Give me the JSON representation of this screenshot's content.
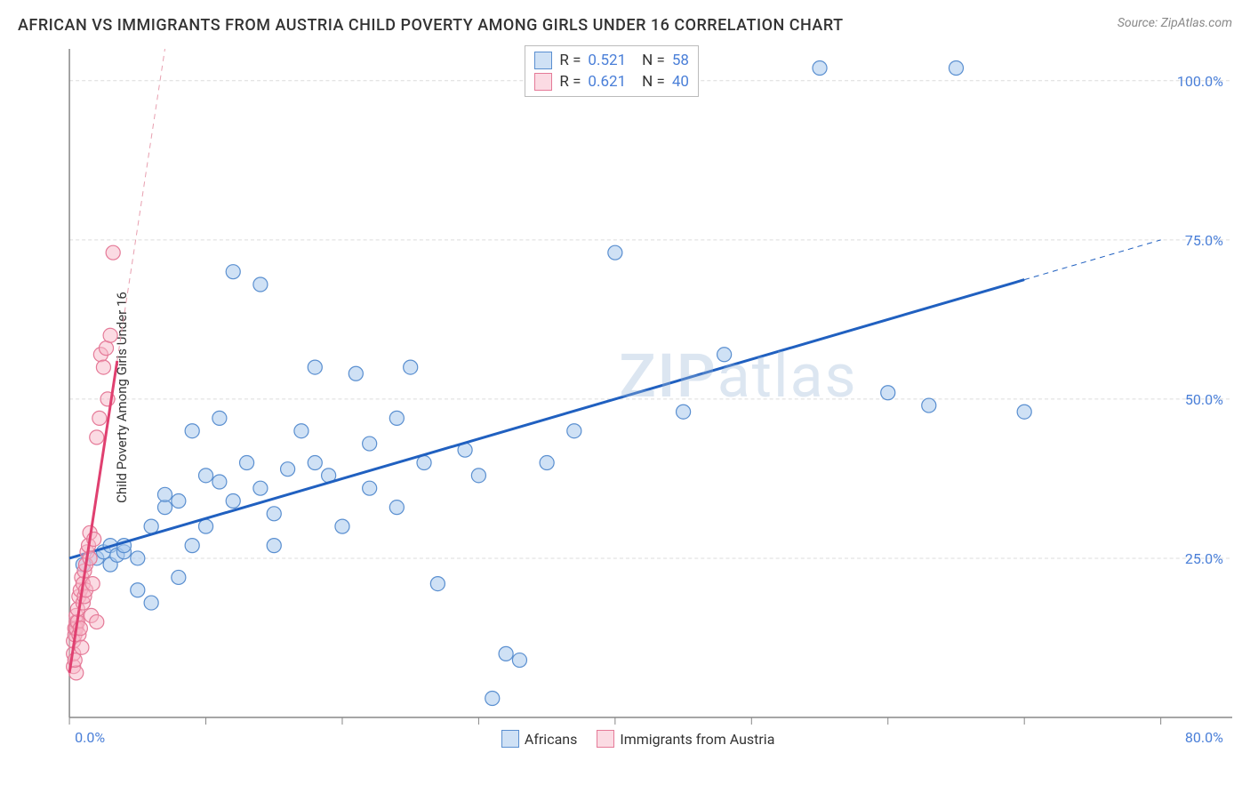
{
  "title": "AFRICAN VS IMMIGRANTS FROM AUSTRIA CHILD POVERTY AMONG GIRLS UNDER 16 CORRELATION CHART",
  "source_label": "Source: ZipAtlas.com",
  "y_axis_label": "Child Poverty Among Girls Under 16",
  "watermark_a": "ZIP",
  "watermark_b": "atlas",
  "chart": {
    "type": "scatter",
    "xlim": [
      0,
      80
    ],
    "ylim": [
      0,
      105
    ],
    "x_ticks": [
      0,
      10,
      20,
      30,
      40,
      50,
      60,
      70,
      80
    ],
    "x_tick_labels": {
      "0": "0.0%",
      "80": "80.0%"
    },
    "y_gridlines": [
      25,
      50,
      75,
      100
    ],
    "y_tick_labels": [
      "25.0%",
      "50.0%",
      "75.0%",
      "100.0%"
    ],
    "background_color": "#ffffff",
    "grid_color": "#dcdcdc",
    "axis_color": "#888888",
    "marker_radius": 8,
    "series": [
      {
        "name": "Africans",
        "color_fill": "#a8c8ec",
        "color_stroke": "#5a8fd0",
        "r": "0.521",
        "n": "58",
        "trend": {
          "x1": 0,
          "y1": 25,
          "x2": 80,
          "y2": 75,
          "solid_from_x": 0,
          "solid_to_x": 70
        },
        "points": [
          [
            1,
            24
          ],
          [
            2,
            25
          ],
          [
            2.5,
            26
          ],
          [
            3,
            27
          ],
          [
            3,
            24
          ],
          [
            3.5,
            25.5
          ],
          [
            4,
            26
          ],
          [
            4,
            27
          ],
          [
            5,
            25
          ],
          [
            5,
            20
          ],
          [
            6,
            18
          ],
          [
            6,
            30
          ],
          [
            7,
            33
          ],
          [
            7,
            35
          ],
          [
            8,
            34
          ],
          [
            8,
            22
          ],
          [
            9,
            45
          ],
          [
            9,
            27
          ],
          [
            10,
            38
          ],
          [
            10,
            30
          ],
          [
            11,
            37
          ],
          [
            11,
            47
          ],
          [
            12,
            34
          ],
          [
            12,
            70
          ],
          [
            13,
            40
          ],
          [
            14,
            68
          ],
          [
            14,
            36
          ],
          [
            15,
            32
          ],
          [
            15,
            27
          ],
          [
            16,
            39
          ],
          [
            17,
            45
          ],
          [
            18,
            40
          ],
          [
            18,
            55
          ],
          [
            19,
            38
          ],
          [
            20,
            30
          ],
          [
            21,
            54
          ],
          [
            22,
            43
          ],
          [
            22,
            36
          ],
          [
            24,
            47
          ],
          [
            24,
            33
          ],
          [
            25,
            55
          ],
          [
            26,
            40
          ],
          [
            27,
            21
          ],
          [
            29,
            42
          ],
          [
            30,
            38
          ],
          [
            31,
            3
          ],
          [
            32,
            10
          ],
          [
            33,
            9
          ],
          [
            35,
            40
          ],
          [
            37,
            45
          ],
          [
            40,
            73
          ],
          [
            45,
            48
          ],
          [
            48,
            57
          ],
          [
            55,
            102
          ],
          [
            60,
            51
          ],
          [
            63,
            49
          ],
          [
            65,
            102
          ],
          [
            70,
            48
          ]
        ]
      },
      {
        "name": "Immigrants from Austria",
        "color_fill": "#f8b8c8",
        "color_stroke": "#e57a98",
        "r": "0.621",
        "n": "40",
        "trend": {
          "x1": 0,
          "y1": 7,
          "x2": 7,
          "y2": 105,
          "solid_from_x": 0,
          "solid_to_x": 3.5
        },
        "points": [
          [
            0.3,
            8
          ],
          [
            0.3,
            10
          ],
          [
            0.3,
            12
          ],
          [
            0.4,
            13
          ],
          [
            0.4,
            14
          ],
          [
            0.5,
            15
          ],
          [
            0.5,
            14
          ],
          [
            0.5,
            16
          ],
          [
            0.6,
            15
          ],
          [
            0.6,
            17
          ],
          [
            0.7,
            13
          ],
          [
            0.7,
            19
          ],
          [
            0.8,
            14
          ],
          [
            0.8,
            20
          ],
          [
            0.9,
            11
          ],
          [
            0.9,
            22
          ],
          [
            1.0,
            18
          ],
          [
            1.0,
            21
          ],
          [
            1.1,
            19
          ],
          [
            1.1,
            23
          ],
          [
            1.2,
            20
          ],
          [
            1.2,
            24
          ],
          [
            1.3,
            26
          ],
          [
            1.4,
            27
          ],
          [
            1.5,
            25
          ],
          [
            1.5,
            29
          ],
          [
            1.6,
            16
          ],
          [
            1.7,
            21
          ],
          [
            1.8,
            28
          ],
          [
            2.0,
            15
          ],
          [
            2.0,
            44
          ],
          [
            2.2,
            47
          ],
          [
            2.3,
            57
          ],
          [
            2.5,
            55
          ],
          [
            2.7,
            58
          ],
          [
            2.8,
            50
          ],
          [
            3.0,
            60
          ],
          [
            3.2,
            73
          ],
          [
            0.5,
            7
          ],
          [
            0.4,
            9
          ]
        ]
      }
    ]
  },
  "legend_top": {
    "r_label": "R =",
    "n_label": "N ="
  },
  "legend_bottom": [
    {
      "swatch": "blue",
      "label": "Africans"
    },
    {
      "swatch": "pink",
      "label": "Immigrants from Austria"
    }
  ]
}
